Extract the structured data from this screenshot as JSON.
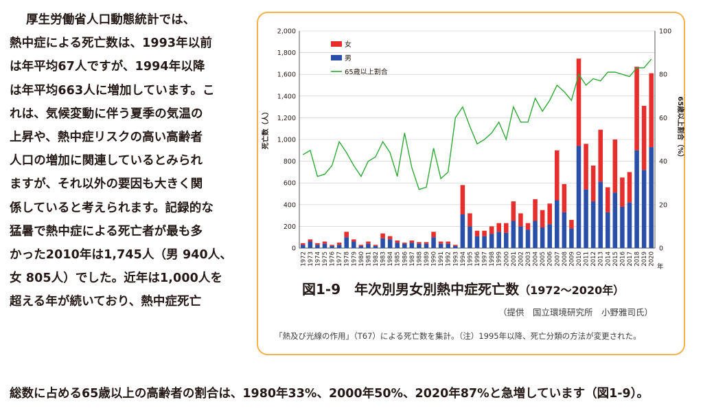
{
  "body_text": {
    "lines": [
      "厚生労働省人口動態統計では、",
      "熱中症による死亡数は、1993年以前",
      "は年平均67人ですが、1994年以降",
      "は年平均663人に増加しています。こ",
      "れは、気候変動に伴う夏季の気温の",
      "上昇や、熱中症リスクの高い高齢者",
      "人口の増加に関連しているとみられ",
      "ますが、それ以外の要因も大きく関",
      "係していると考えられます。記録的な",
      "猛暑で熱中症による死亡者が最も多",
      "かった2010年は1,745人（男 940人、",
      "女 805人）でした。近年は1,000人を",
      "超える年が続いており、熱中症死亡"
    ],
    "bottom_line": "総数に占める65歳以上の高齢者の割合は、1980年33%、2000年50%、2020年87%と急増しています（図1-9）。"
  },
  "figure": {
    "title": "図1-9　年次別男女別熱中症死亡数",
    "title_range": "（1972〜2020年）",
    "credit": "（提供　国立環境研究所　小野雅司氏）",
    "note": "「熱及び光線の作用」（T67）による死亡数を集計。（注）1995年以降、死亡分類の方法が変更された。"
  },
  "chart_data": {
    "type": "bar",
    "stacked": true,
    "categories": [
      "1972",
      "1973",
      "1974",
      "1975",
      "1976",
      "1977",
      "1978",
      "1979",
      "1980",
      "1981",
      "1982",
      "1983",
      "1984",
      "1985",
      "1986",
      "1987",
      "1988",
      "1989",
      "1990",
      "1991",
      "1992",
      "1993",
      "1994",
      "1995",
      "1996",
      "1997",
      "1998",
      "1999",
      "2000",
      "2001",
      "2002",
      "2003",
      "2004",
      "2005",
      "2006",
      "2007",
      "2008",
      "2009",
      "2010",
      "2011",
      "2012",
      "2013",
      "2014",
      "2015",
      "2016",
      "2017",
      "2018",
      "2019",
      "2020"
    ],
    "series": [
      {
        "name": "男",
        "color": "#2a4fa8",
        "values": [
          30,
          60,
          30,
          40,
          20,
          30,
          100,
          60,
          20,
          40,
          20,
          90,
          80,
          50,
          40,
          50,
          40,
          40,
          100,
          40,
          40,
          20,
          310,
          200,
          110,
          110,
          130,
          150,
          140,
          250,
          200,
          170,
          250,
          190,
          220,
          440,
          330,
          180,
          940,
          540,
          430,
          610,
          330,
          510,
          380,
          420,
          900,
          720,
          930
        ]
      },
      {
        "name": "女",
        "color": "#e62e2d",
        "values": [
          15,
          20,
          15,
          20,
          10,
          20,
          50,
          20,
          10,
          20,
          10,
          45,
          30,
          20,
          10,
          20,
          15,
          15,
          50,
          20,
          20,
          10,
          270,
          120,
          50,
          50,
          70,
          80,
          90,
          180,
          120,
          60,
          200,
          160,
          190,
          460,
          260,
          80,
          805,
          420,
          330,
          480,
          230,
          490,
          270,
          280,
          770,
          590,
          680
        ]
      },
      {
        "name": "65歳以上割合",
        "color": "#2ea835",
        "axis": "right",
        "values": [
          43,
          45,
          33,
          34,
          38,
          49,
          44,
          38,
          33,
          40,
          42,
          49,
          44,
          33,
          53,
          37,
          27,
          28,
          46,
          32,
          35,
          60,
          65,
          56,
          48,
          50,
          53,
          58,
          50,
          65,
          58,
          58,
          69,
          63,
          68,
          75,
          72,
          68,
          80,
          75,
          78,
          77,
          81,
          81,
          80,
          79,
          83,
          83,
          87
        ]
      }
    ],
    "ylabel": "死亡数（人）",
    "y2label": "65歳以上割合（%）",
    "ylim": [
      0,
      2000
    ],
    "y_ticks": [
      "0",
      "200",
      "400",
      "600",
      "800",
      "1,000",
      "1,200",
      "1,400",
      "1,600",
      "1,800",
      "2,000"
    ],
    "y2lim": [
      0,
      100
    ],
    "y2_ticks": [
      "0",
      "20",
      "40",
      "60",
      "80",
      "100"
    ],
    "x_unit": "年",
    "legend": [
      {
        "label": "女",
        "kind": "box",
        "color": "#e62e2d"
      },
      {
        "label": "男",
        "kind": "box",
        "color": "#2a4fa8"
      },
      {
        "label": "65歳以上割合",
        "kind": "line",
        "color": "#2ea835"
      }
    ],
    "legend_position": "top-left",
    "grid": true
  }
}
